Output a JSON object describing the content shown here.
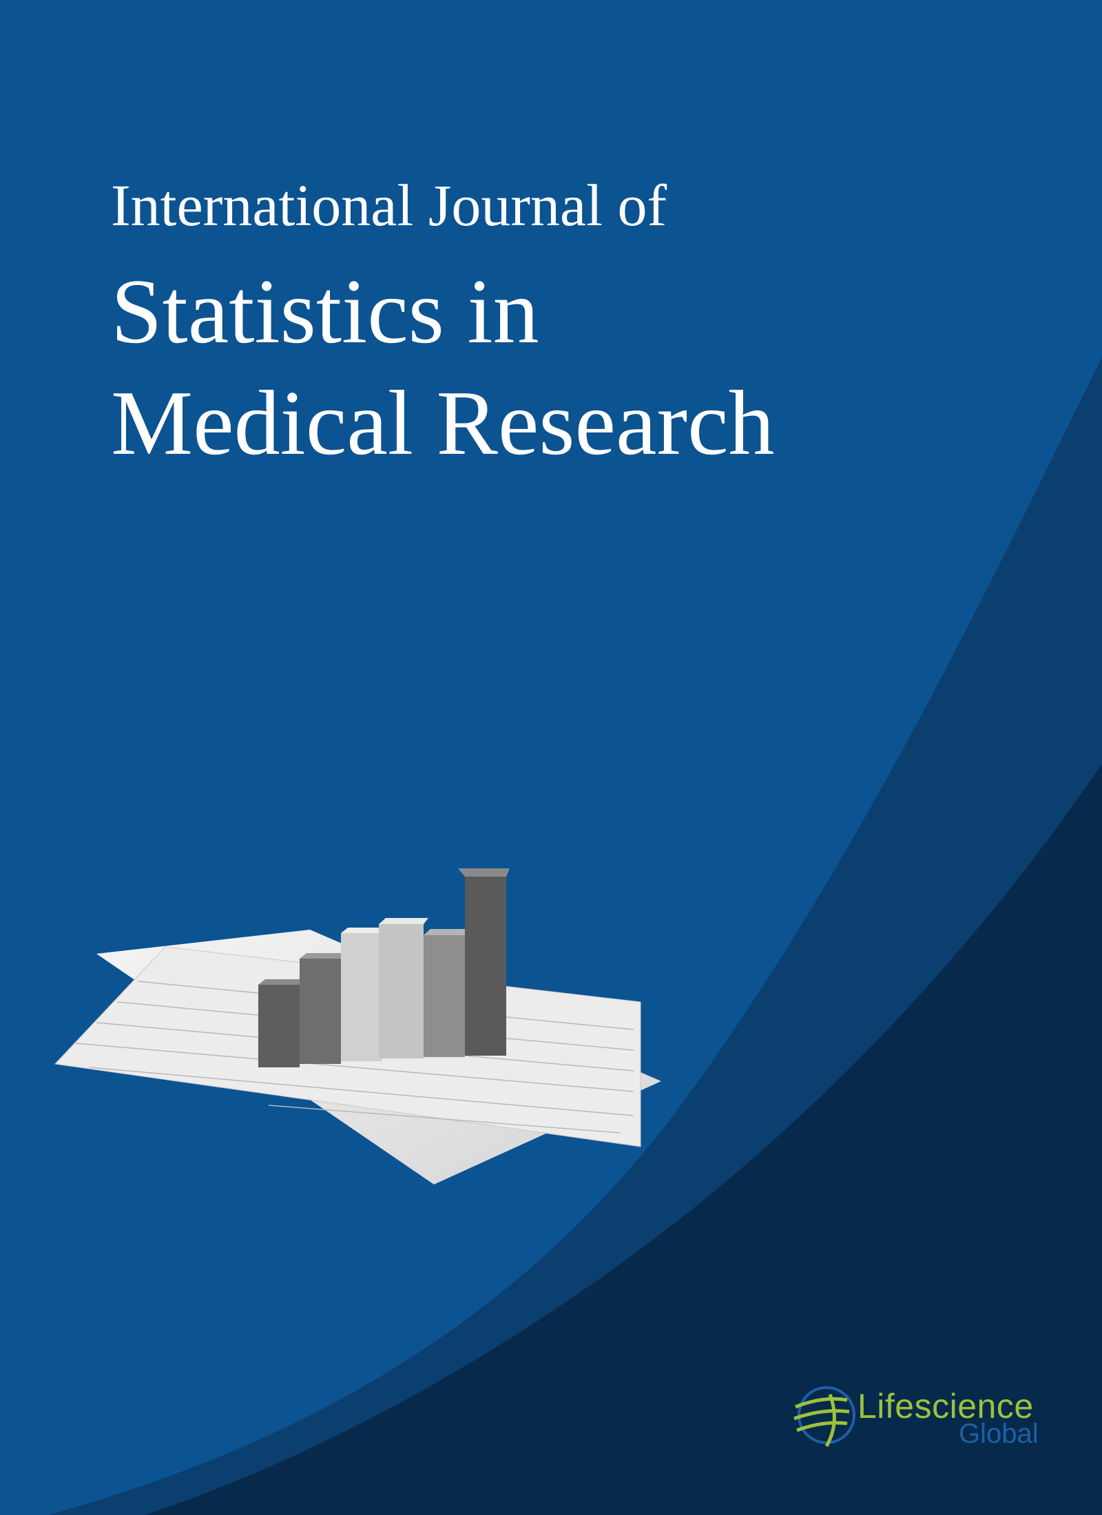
{
  "cover": {
    "title_line1": "International Journal of",
    "title_line2": "Statistics in",
    "title_line3": "Medical Research"
  },
  "illustration": {
    "description_icon": "bar-chart-on-spreadsheet-illustration"
  },
  "publisher": {
    "name": "Lifescience",
    "sub": "Global",
    "icon": "globe-helix-logo-icon",
    "colors": {
      "name": "#9dc23b",
      "sub": "#1f5fa6"
    }
  },
  "colors": {
    "background": "#0c5392",
    "band_middle": "#0a3f70",
    "band_dark": "#072a4c",
    "title_text": "#ffffff"
  }
}
